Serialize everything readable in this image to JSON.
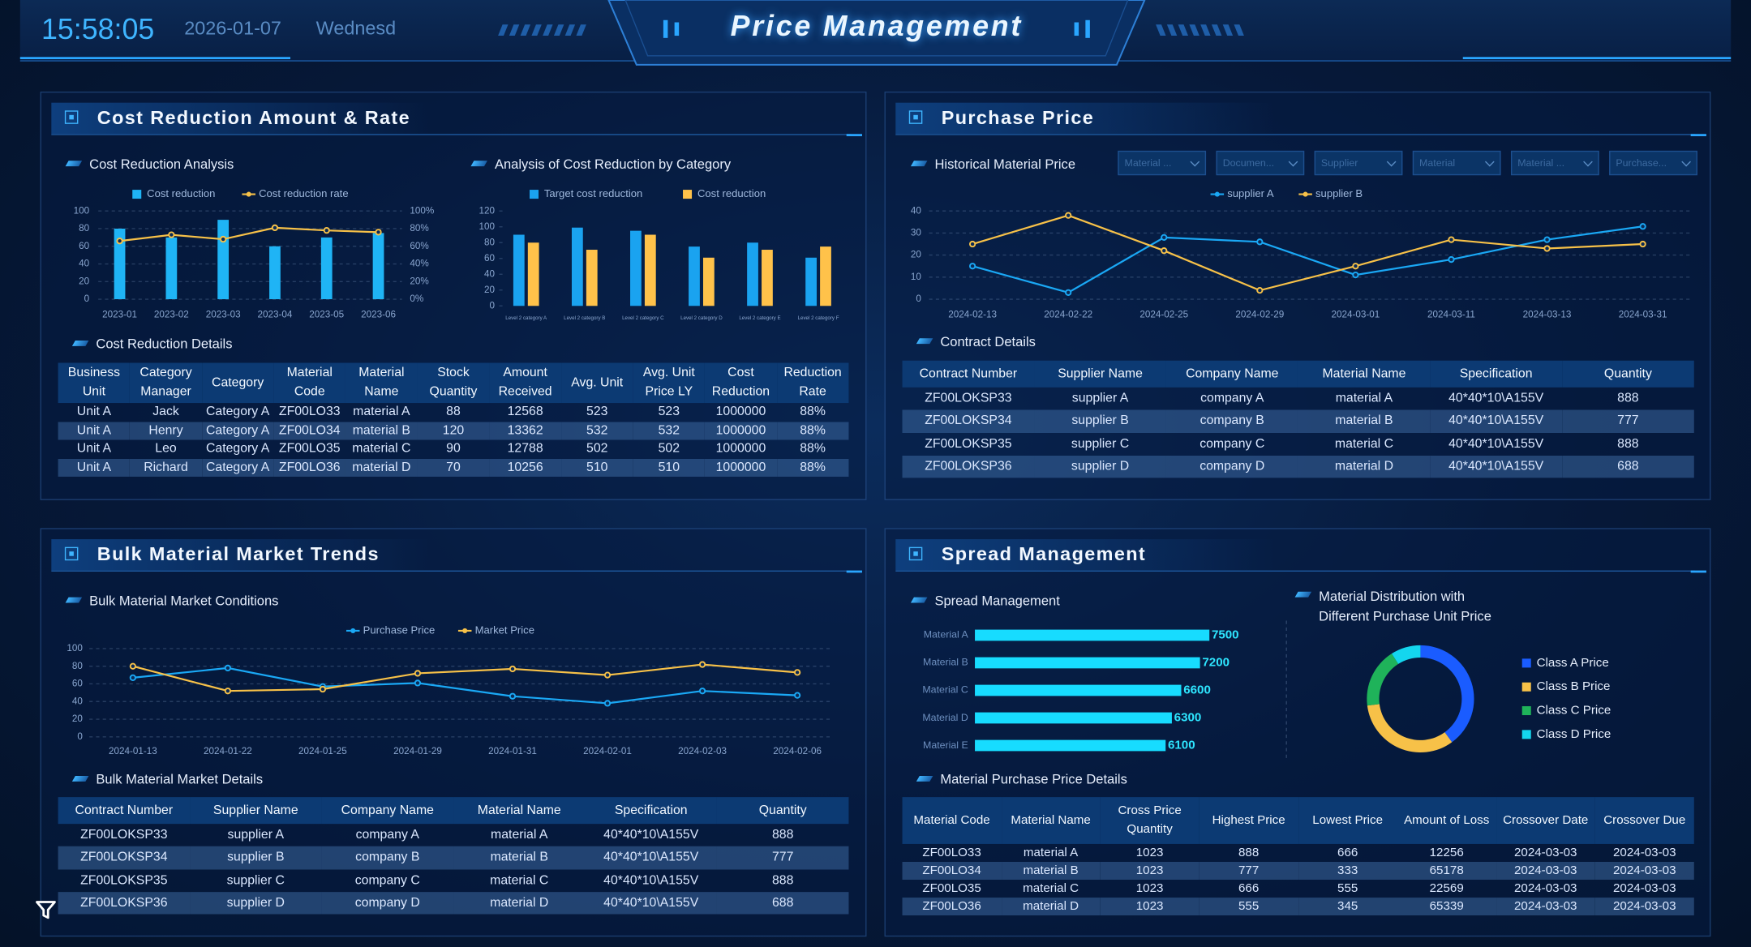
{
  "header": {
    "time": "15:58:05",
    "date": "2026-01-07",
    "weekday": "Wednesd",
    "title": "Price Management"
  },
  "panels": [
    {
      "title": "Cost Reduction Amount & Rate",
      "sections": [
        "Cost Reduction Analysis",
        "Analysis of Cost Reduction by Category",
        "Cost Reduction Details"
      ],
      "table": {
        "headers": [
          "Business Unit",
          "Category Manager",
          "Category",
          "Material Code",
          "Material Name",
          "Stock Quantity",
          "Amount Received",
          "Avg. Unit",
          "Avg. Unit Price LY",
          "Cost Reduction",
          "Reduction Rate"
        ],
        "rows": [
          [
            "Unit A",
            "Jack",
            "Category A",
            "ZF00LO33",
            "material A",
            "88",
            "12568",
            "523",
            "523",
            "1000000",
            "88%"
          ],
          [
            "Unit A",
            "Henry",
            "Category A",
            "ZF00LO34",
            "material B",
            "120",
            "13362",
            "532",
            "532",
            "1000000",
            "88%"
          ],
          [
            "Unit A",
            "Leo",
            "Category A",
            "ZF00LO35",
            "material C",
            "90",
            "12788",
            "502",
            "502",
            "1000000",
            "88%"
          ],
          [
            "Unit A",
            "Richard",
            "Category A",
            "ZF00LO36",
            "material D",
            "70",
            "10256",
            "510",
            "510",
            "1000000",
            "88%"
          ]
        ]
      }
    },
    {
      "title": "Purchase Price",
      "sections": [
        "Historical Material Price",
        "Contract Details"
      ],
      "filters": [
        "Material ...",
        "Documen...",
        "Supplier",
        "Material",
        "Material ...",
        "Purchase..."
      ],
      "table": {
        "headers": [
          "Contract Number",
          "Supplier Name",
          "Company Name",
          "Material Name",
          "Specification",
          "Quantity"
        ],
        "rows": [
          [
            "ZF00LOKSP33",
            "supplier A",
            "company A",
            "material A",
            "40*40*10\\A155V",
            "888"
          ],
          [
            "ZF00LOKSP34",
            "supplier B",
            "company B",
            "material B",
            "40*40*10\\A155V",
            "777"
          ],
          [
            "ZF00LOKSP35",
            "supplier C",
            "company C",
            "material C",
            "40*40*10\\A155V",
            "888"
          ],
          [
            "ZF00LOKSP36",
            "supplier D",
            "company D",
            "material D",
            "40*40*10\\A155V",
            "688"
          ]
        ]
      }
    },
    {
      "title": "Bulk Material Market Trends",
      "sections": [
        "Bulk Material Market Conditions",
        "Bulk Material Market Details"
      ],
      "table": {
        "headers": [
          "Contract Number",
          "Supplier Name",
          "Company Name",
          "Material Name",
          "Specification",
          "Quantity"
        ],
        "rows": [
          [
            "ZF00LOKSP33",
            "supplier A",
            "company A",
            "material A",
            "40*40*10\\A155V",
            "888"
          ],
          [
            "ZF00LOKSP34",
            "supplier B",
            "company B",
            "material B",
            "40*40*10\\A155V",
            "777"
          ],
          [
            "ZF00LOKSP35",
            "supplier C",
            "company C",
            "material C",
            "40*40*10\\A155V",
            "888"
          ],
          [
            "ZF00LOKSP36",
            "supplier D",
            "company D",
            "material D",
            "40*40*10\\A155V",
            "688"
          ]
        ]
      }
    },
    {
      "title": "Spread Management",
      "sections": [
        "Spread Management",
        "Material Distribution with Different Purchase Unit Price",
        "Material Purchase Price Details"
      ],
      "table": {
        "headers": [
          "Material Code",
          "Material Name",
          "Cross Price Quantity",
          "Highest Price",
          "Lowest Price",
          "Amount of Loss",
          "Crossover Date",
          "Crossover Due"
        ],
        "rows": [
          [
            "ZF00LO33",
            "material A",
            "1023",
            "888",
            "666",
            "12256",
            "2024-03-03",
            "2024-03-03"
          ],
          [
            "ZF00LO34",
            "material B",
            "1023",
            "777",
            "333",
            "65178",
            "2024-03-03",
            "2024-03-03"
          ],
          [
            "ZF00LO35",
            "material C",
            "1023",
            "666",
            "555",
            "22569",
            "2024-03-03",
            "2024-03-03"
          ],
          [
            "ZF00LO36",
            "material D",
            "1023",
            "555",
            "345",
            "65339",
            "2024-03-03",
            "2024-03-03"
          ]
        ]
      }
    }
  ],
  "chart_data": [
    {
      "type": "bar",
      "categories": [
        "2023-01",
        "2023-02",
        "2023-03",
        "2023-04",
        "2023-05",
        "2023-06"
      ],
      "series": [
        {
          "name": "Cost reduction",
          "color": "#1fb4f5",
          "values": [
            80,
            70,
            90,
            60,
            70,
            75
          ]
        },
        {
          "name": "Cost reduction rate",
          "type": "line",
          "axis": "y2",
          "color": "#f7c148",
          "values": [
            66,
            73,
            68,
            81,
            78,
            76
          ]
        }
      ],
      "ylim": [
        0,
        100
      ],
      "yticks": [
        0,
        20,
        40,
        60,
        80,
        100
      ],
      "y2lim": [
        0,
        100
      ],
      "y2ticks": [
        {
          "value": 0,
          "label": "0%"
        },
        {
          "value": 20,
          "label": "20%"
        },
        {
          "value": 40,
          "label": "40%"
        },
        {
          "value": 60,
          "label": "60%"
        },
        {
          "value": 80,
          "label": "80%"
        },
        {
          "value": 100,
          "label": "100%"
        }
      ],
      "grid": true
    },
    {
      "type": "bar",
      "categories": [
        "Level 2 category A",
        "Level 2 category B",
        "Level 2 category C",
        "Level 2 category D",
        "Level 2 category E",
        "Level 2 category F"
      ],
      "series": [
        {
          "name": "Target cost reduction",
          "color": "#1aa3f0",
          "values": [
            90,
            99,
            95,
            75,
            80,
            61
          ]
        },
        {
          "name": "Cost reduction",
          "color": "#ffc24a",
          "values": [
            80,
            71,
            90,
            61,
            71,
            75
          ]
        }
      ],
      "ylim": [
        0,
        120
      ],
      "yticks": [
        0,
        20,
        40,
        60,
        80,
        100,
        120
      ],
      "grid": false
    },
    {
      "type": "line",
      "categories": [
        "2024-02-13",
        "2024-02-22",
        "2024-02-25",
        "2024-02-29",
        "2024-03-01",
        "2024-03-11",
        "2024-03-13",
        "2024-03-31"
      ],
      "series": [
        {
          "name": "supplier A",
          "color": "#1aa8f5",
          "values": [
            15,
            3,
            28,
            26,
            11,
            18,
            27,
            33
          ]
        },
        {
          "name": "supplier B",
          "color": "#f7c148",
          "values": [
            25,
            38,
            22,
            4,
            15,
            27,
            23,
            25
          ]
        }
      ],
      "ylim": [
        0,
        40
      ],
      "yticks": [
        0,
        10,
        20,
        30,
        40
      ],
      "grid": true
    },
    {
      "type": "line",
      "categories": [
        "2024-01-13",
        "2024-01-22",
        "2024-01-25",
        "2024-01-29",
        "2024-01-31",
        "2024-02-01",
        "2024-02-03",
        "2024-02-06"
      ],
      "series": [
        {
          "name": "Purchase Price",
          "color": "#1aa8f5",
          "values": [
            67,
            78,
            57,
            61,
            46,
            38,
            52,
            47
          ]
        },
        {
          "name": "Market Price",
          "color": "#f7c148",
          "values": [
            80,
            52,
            54,
            72,
            77,
            70,
            82,
            73
          ]
        }
      ],
      "ylim": [
        0,
        100
      ],
      "yticks": [
        0,
        20,
        40,
        60,
        80,
        100
      ],
      "grid": true
    },
    {
      "type": "bar",
      "orientation": "horizontal",
      "categories": [
        "Material A",
        "Material B",
        "Material C",
        "Material D",
        "Material E"
      ],
      "values": [
        7500,
        7200,
        6600,
        6300,
        6100
      ],
      "color": "#17dcff",
      "xlim": [
        0,
        8000
      ]
    },
    {
      "type": "pie",
      "categories": [
        "Class A Price",
        "Class B Price",
        "Class C Price",
        "Class D Price"
      ],
      "values": [
        40,
        33,
        18,
        9
      ],
      "colors": [
        "#1a5cff",
        "#f7c148",
        "#1fb35a",
        "#14d6ee"
      ]
    }
  ]
}
